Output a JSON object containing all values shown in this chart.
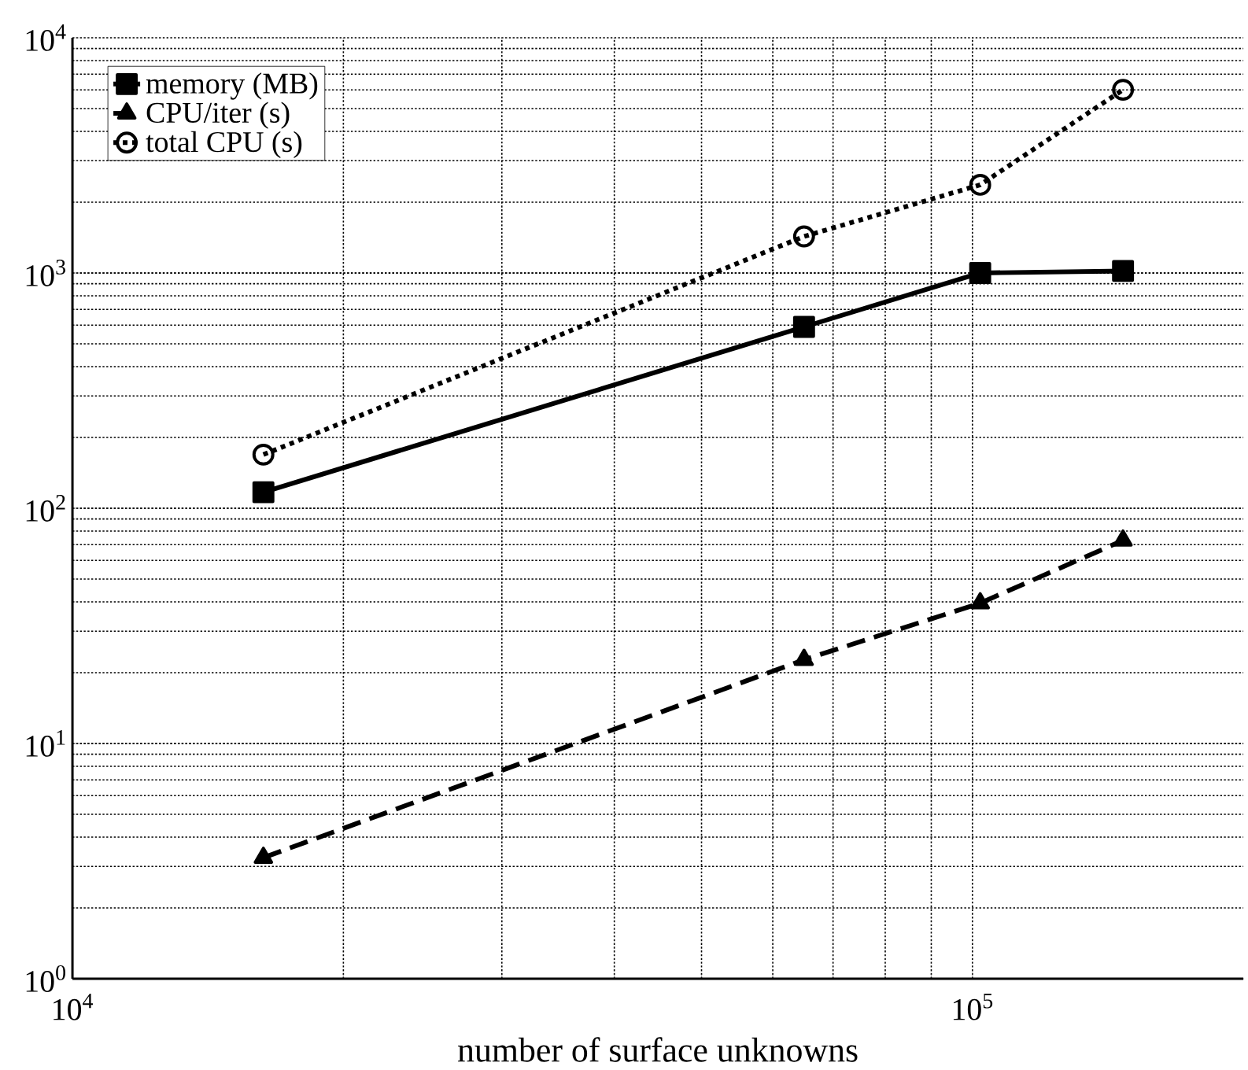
{
  "chart_data": {
    "type": "line",
    "xlabel": "number of surface unknowns",
    "log": "xy",
    "grid": true,
    "legend": "top left",
    "xlim": [
      10000,
      200000
    ],
    "ylim": [
      1,
      10000
    ],
    "xticks": [
      {
        "value": 10000,
        "label": "10$^{4}$"
      },
      {
        "value": 100000,
        "label": "10$^{5}$"
      }
    ],
    "yticks": [
      {
        "value": 1,
        "label": "10$^{0}$"
      },
      {
        "value": 10,
        "label": "10$^{1}$"
      },
      {
        "value": 100,
        "label": "10$^{2}$"
      },
      {
        "value": 1000,
        "label": "10$^{3}$"
      },
      {
        "value": 10000,
        "label": "10$^{4}$"
      }
    ],
    "x": [
      16300,
      65000,
      102000,
      147000
    ],
    "series": [
      {
        "name": "memory (MB)",
        "color": "#000000",
        "marker": "square",
        "line_style": "solid",
        "values": [
          117,
          590,
          1000,
          1020
        ]
      },
      {
        "name": "CPU/iter (s)",
        "color": "#000000",
        "marker": "triangle",
        "line_style": "dashed",
        "values": [
          3.27,
          22.7,
          39.5,
          73
        ]
      },
      {
        "name": "total CPU (s)",
        "color": "#000000",
        "marker": "circle",
        "line_style": "dotted",
        "values": [
          169,
          1430,
          2370,
          6010
        ]
      }
    ]
  }
}
